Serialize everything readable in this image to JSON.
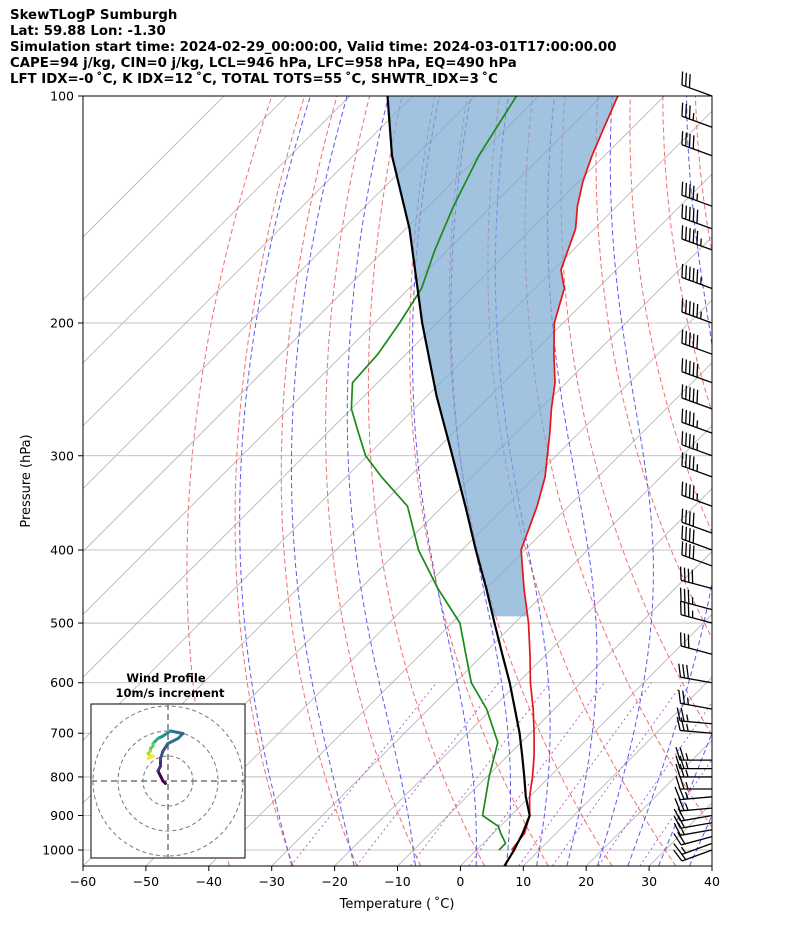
{
  "header": {
    "line1": "SkewTLogP Sumburgh",
    "line2": "Lat: 59.88   Lon: -1.30",
    "line3": "Simulation start time: 2024-02-29_00:00:00, Valid time: 2024-03-01T17:00:00.00",
    "line4": "CAPE=94 j/kg, CIN=0 j/kg, LCL=946 hPa, LFC=958 hPa, EQ=490 hPa",
    "line5": "LFT IDX=-0 ˚C, K IDX=12 ˚C, TOTAL TOTS=55 ˚C, SHWTR_IDX=3 ˚C"
  },
  "chart_data": {
    "type": "line",
    "xlabel": "Temperature ( ˚C)",
    "ylabel": "Pressure (hPa)",
    "xlim": [
      -60,
      40
    ],
    "ylim": [
      1050,
      100
    ],
    "y_scale": "log",
    "skew": true,
    "x_ticks": [
      -60,
      -50,
      -40,
      -30,
      -20,
      -10,
      0,
      10,
      20,
      30,
      40
    ],
    "y_ticks": [
      100,
      200,
      300,
      400,
      500,
      600,
      700,
      800,
      900,
      1000
    ],
    "grid": true,
    "series": [
      {
        "role": "temperature",
        "color": "#e8141c",
        "points": [
          [
            5.6,
            1000
          ],
          [
            5.0,
            950
          ],
          [
            3.0,
            900
          ],
          [
            0.0,
            850
          ],
          [
            -2.7,
            800
          ],
          [
            -5.8,
            750
          ],
          [
            -9.4,
            700
          ],
          [
            -13.4,
            650
          ],
          [
            -18.0,
            600
          ],
          [
            -22.6,
            550
          ],
          [
            -27.8,
            500
          ],
          [
            -34.0,
            450
          ],
          [
            -40.6,
            400
          ],
          [
            -45.0,
            350
          ],
          [
            -48.4,
            320
          ],
          [
            -51.4,
            300
          ],
          [
            -54.6,
            280
          ],
          [
            -58.2,
            260
          ],
          [
            -61.8,
            240
          ],
          [
            -66.5,
            220
          ],
          [
            -71.4,
            200
          ],
          [
            -75.3,
            180
          ],
          [
            -78.8,
            170
          ],
          [
            -83.0,
            150
          ],
          [
            -86.3,
            140
          ],
          [
            -89.3,
            130
          ],
          [
            -92.0,
            120
          ],
          [
            -94.6,
            110
          ],
          [
            -97.4,
            100
          ]
        ]
      },
      {
        "role": "dewpoint",
        "color": "#1a8a1a",
        "points": [
          [
            3.6,
            1000
          ],
          [
            3.6,
            980
          ],
          [
            1.2,
            950
          ],
          [
            -0.3,
            930
          ],
          [
            -4.5,
            900
          ],
          [
            -9.6,
            800
          ],
          [
            -13.7,
            720
          ],
          [
            -20.8,
            650
          ],
          [
            -27.4,
            600
          ],
          [
            -32.8,
            550
          ],
          [
            -38.7,
            500
          ],
          [
            -47.7,
            450
          ],
          [
            -56.9,
            400
          ],
          [
            -65.6,
            350
          ],
          [
            -74.4,
            320
          ],
          [
            -80.3,
            300
          ],
          [
            -85.0,
            280
          ],
          [
            -90.0,
            260
          ],
          [
            -94.0,
            240
          ],
          [
            -94.5,
            220
          ],
          [
            -96.0,
            200
          ],
          [
            -98.0,
            180
          ],
          [
            -102.0,
            160
          ],
          [
            -106.0,
            140
          ],
          [
            -110.0,
            120
          ],
          [
            -113.5,
            100
          ]
        ]
      },
      {
        "role": "parcel",
        "color": "#000000",
        "points": [
          [
            7.0,
            1050
          ],
          [
            6.0,
            1000
          ],
          [
            4.7,
            950
          ],
          [
            3.0,
            900
          ],
          [
            -0.6,
            850
          ],
          [
            -4.0,
            800
          ],
          [
            -7.7,
            750
          ],
          [
            -11.7,
            700
          ],
          [
            -16.3,
            650
          ],
          [
            -21.3,
            600
          ],
          [
            -27.0,
            550
          ],
          [
            -33.2,
            500
          ],
          [
            -40.0,
            450
          ],
          [
            -47.8,
            400
          ],
          [
            -56.4,
            350
          ],
          [
            -66.5,
            300
          ],
          [
            -78.5,
            250
          ],
          [
            -92.4,
            200
          ],
          [
            -109.4,
            150
          ],
          [
            -123.8,
            120
          ],
          [
            -134.0,
            100
          ]
        ]
      }
    ],
    "dry_adiabats_C": [
      -40,
      -30,
      -20,
      -10,
      0,
      10,
      20,
      30,
      40,
      50,
      60,
      70,
      80,
      90,
      100,
      110,
      120,
      130,
      140,
      150,
      160,
      170
    ],
    "moist_adiabats_C": [
      -30,
      -20,
      -10,
      0,
      5,
      10,
      15,
      20,
      25,
      30,
      35,
      40
    ],
    "mixing_ratio_gkg": [
      0.4,
      1,
      2,
      4,
      7,
      10,
      16,
      24
    ],
    "wind_barbs": {
      "pressure_hPa": [
        1000,
        980,
        960,
        940,
        920,
        900,
        880,
        850,
        830,
        800,
        780,
        760,
        700,
        680,
        650,
        600,
        550,
        500,
        480,
        450,
        420,
        400,
        380,
        350,
        320,
        300,
        280,
        260,
        240,
        220,
        200,
        180,
        160,
        150,
        140,
        120,
        110,
        100
      ],
      "speed_kt": [
        15,
        15,
        20,
        20,
        20,
        20,
        25,
        25,
        25,
        25,
        25,
        25,
        25,
        25,
        25,
        30,
        30,
        35,
        35,
        40,
        40,
        40,
        40,
        45,
        45,
        45,
        45,
        50,
        50,
        50,
        55,
        55,
        55,
        50,
        45,
        40,
        35,
        30
      ],
      "direction_deg": [
        250,
        250,
        255,
        260,
        260,
        260,
        265,
        265,
        270,
        270,
        270,
        270,
        275,
        275,
        280,
        280,
        285,
        285,
        285,
        285,
        290,
        290,
        290,
        290,
        290,
        290,
        290,
        290,
        290,
        290,
        290,
        290,
        290,
        290,
        290,
        290,
        290,
        290
      ]
    },
    "inset": {
      "title_line1": "Wind Profile",
      "title_line2": "10m/s increment",
      "rings_ms": [
        10,
        20,
        30
      ],
      "hodograph_uv": [
        [
          -1,
          -1
        ],
        [
          -2,
          0
        ],
        [
          -3,
          2
        ],
        [
          -4,
          4
        ],
        [
          -3,
          6
        ],
        [
          -3,
          9
        ],
        [
          -2,
          12
        ],
        [
          0,
          15
        ],
        [
          4,
          17
        ],
        [
          6,
          19
        ],
        [
          1,
          20
        ],
        [
          -2,
          18
        ],
        [
          -4,
          17
        ],
        [
          -5,
          16
        ],
        [
          -6,
          15
        ],
        [
          -6,
          14
        ],
        [
          -7,
          13
        ],
        [
          -7,
          12
        ],
        [
          -8,
          11
        ],
        [
          -7,
          10
        ],
        [
          -6,
          10
        ],
        [
          -8,
          9
        ]
      ]
    }
  }
}
